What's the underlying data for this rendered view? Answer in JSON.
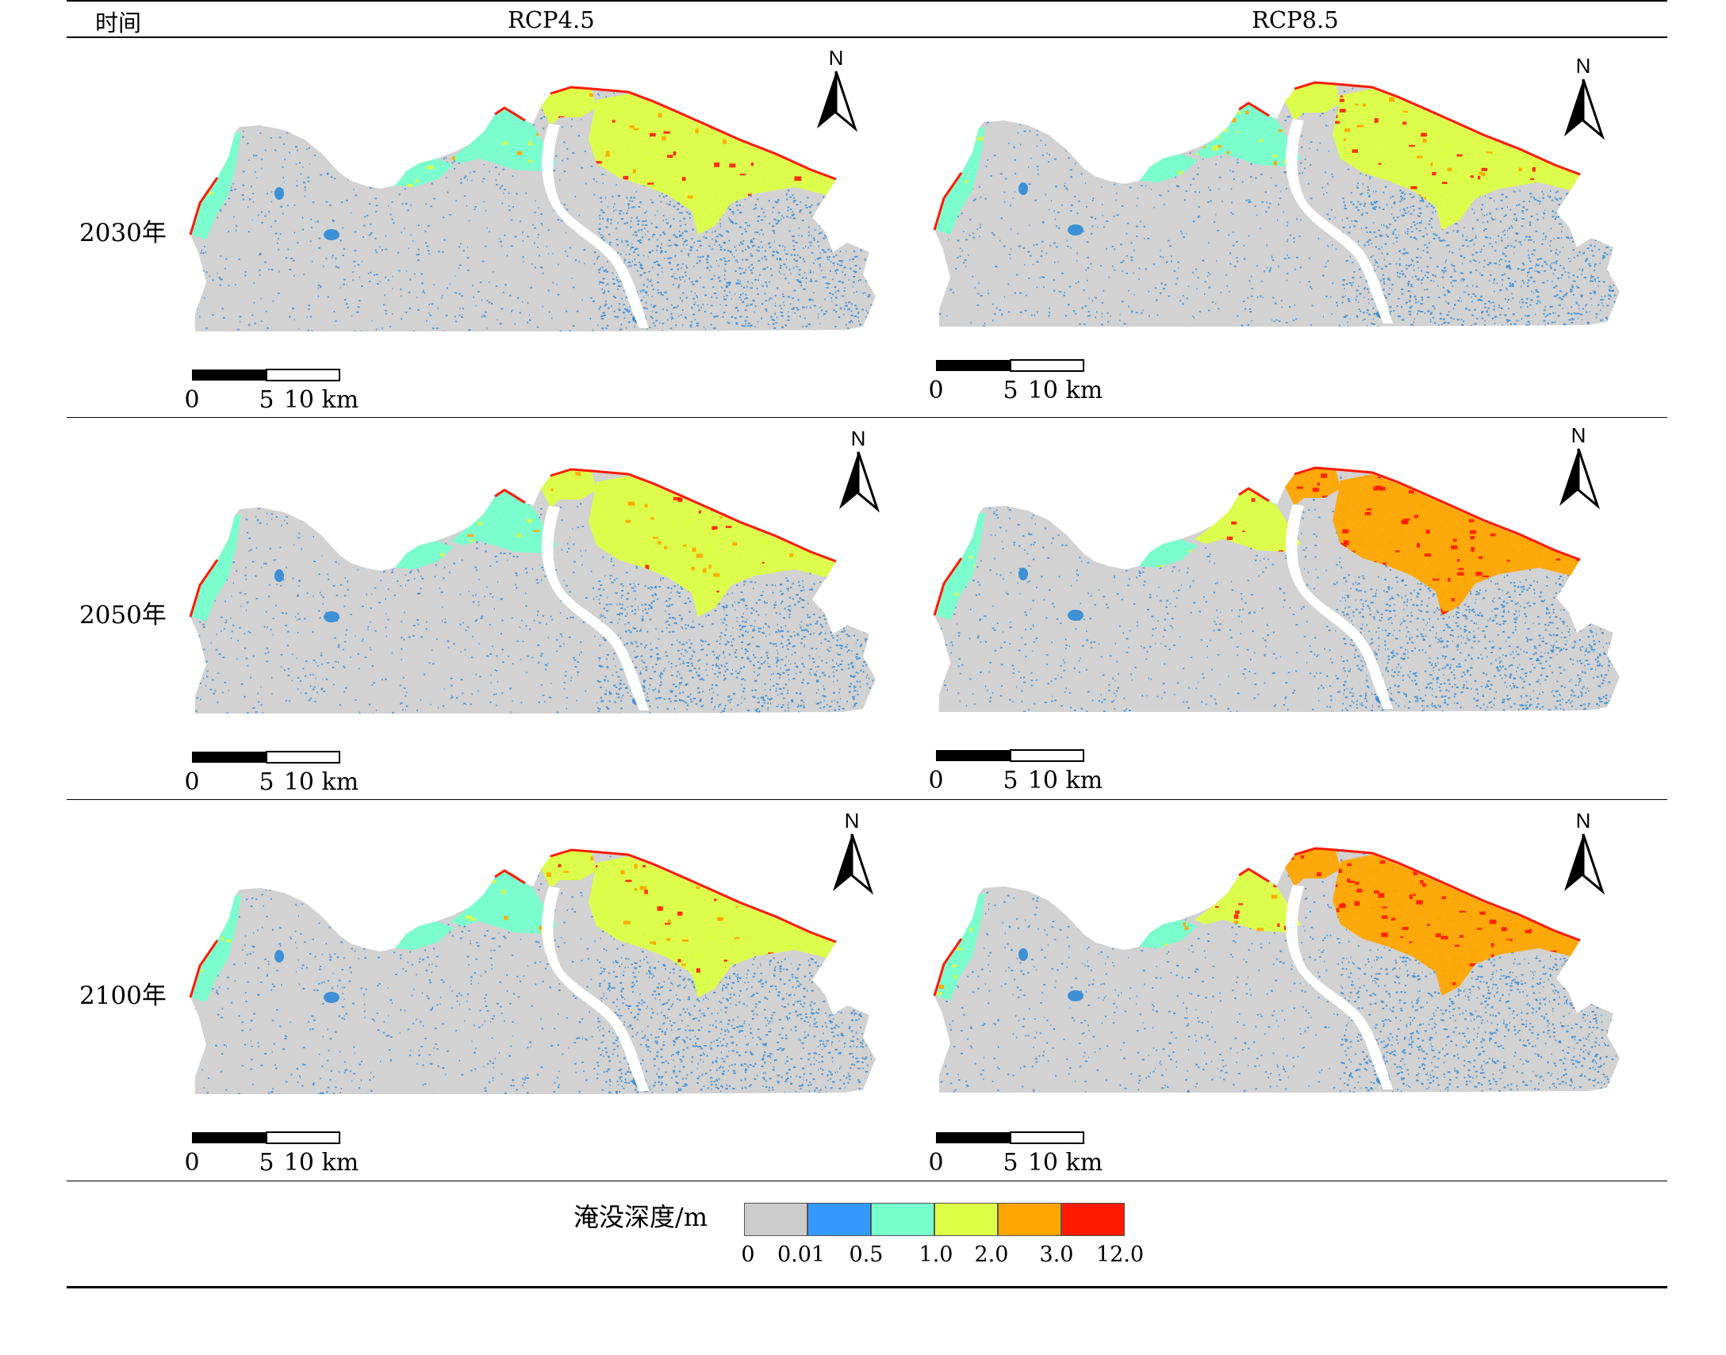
{
  "header": {
    "time": "时间",
    "scenarios": [
      "RCP4.5",
      "RCP8.5"
    ]
  },
  "rows": [
    "2030年",
    "2050年",
    "2100年"
  ],
  "north_label": "N",
  "scale_bar": {
    "labels": [
      "0",
      "5",
      "10 km"
    ]
  },
  "legend": {
    "title": "淹没深度/m",
    "colors": [
      "#cccccc",
      "#3399ff",
      "#77ffcc",
      "#ddff44",
      "#ffa500",
      "#ff1a00"
    ],
    "ticks": [
      "0",
      "0.01",
      "0.5",
      "1.0",
      "2.0",
      "3.0",
      "12.0"
    ]
  },
  "colors": {
    "land": "#d2d2d2",
    "water": "#3d8fd6"
  }
}
